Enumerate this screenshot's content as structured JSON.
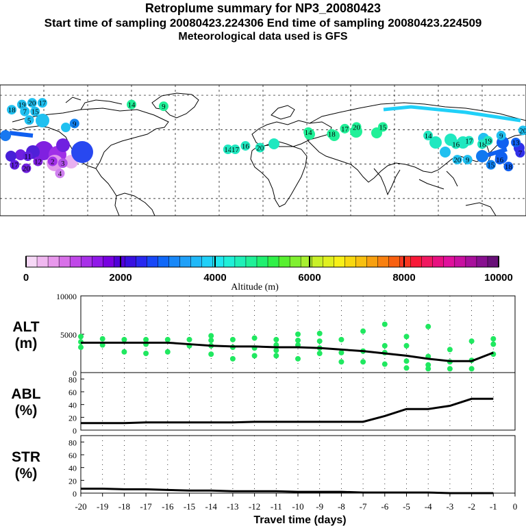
{
  "header": {
    "title": "Retroplume summary for NP3_20080423",
    "sub1": "Start time of sampling 20080423.224306     End time of sampling 20080423.224509",
    "sub2": "Meteorological data used is GFS"
  },
  "colorbar": {
    "label": "Altitude (m)",
    "ticks": [
      "0",
      "2000",
      "4000",
      "6000",
      "8000",
      "10000"
    ],
    "colors": [
      "#f6d8f6",
      "#f0b8f0",
      "#e898ec",
      "#d870e8",
      "#c048e8",
      "#a830e8",
      "#9018e8",
      "#7800e0",
      "#5000d8",
      "#3810e0",
      "#2828f0",
      "#1848f8",
      "#1068f8",
      "#1888f8",
      "#20a0f8",
      "#20b8f8",
      "#20d0f8",
      "#20e8f0",
      "#20f0d8",
      "#20f0b8",
      "#20f098",
      "#20f070",
      "#30f048",
      "#58f030",
      "#80f030",
      "#a8f030",
      "#c8f028",
      "#e0f020",
      "#f8f018",
      "#f8d810",
      "#f8c010",
      "#f8a010",
      "#f88010",
      "#f86010",
      "#f83820",
      "#f81838",
      "#f01860",
      "#e81080",
      "#e0109c",
      "#c810a0",
      "#a8109c",
      "#881090",
      "#681078"
    ]
  },
  "map": {
    "labels": [
      {
        "t": "20",
        "lon": -158,
        "lat": 64,
        "c": "#20c0f0"
      },
      {
        "t": "19",
        "lon": -165,
        "lat": 63,
        "c": "#20c0f0"
      },
      {
        "t": "18",
        "lon": -172,
        "lat": 60,
        "c": "#20c0f0"
      },
      {
        "t": "17",
        "lon": -151,
        "lat": 64,
        "c": "#20c0f0"
      },
      {
        "t": "7",
        "lon": -163,
        "lat": 59,
        "c": "#20c0f0"
      },
      {
        "t": "15",
        "lon": -156,
        "lat": 59,
        "c": "#20c0f0"
      },
      {
        "t": "5",
        "lon": -160,
        "lat": 54,
        "c": "#20c0f0"
      },
      {
        "t": "9",
        "lon": -129,
        "lat": 52,
        "c": "#1080f0"
      },
      {
        "t": "11",
        "lon": -161,
        "lat": 33,
        "c": "#6020e0"
      },
      {
        "t": "12",
        "lon": -154,
        "lat": 30,
        "c": "#8020e0"
      },
      {
        "t": "2",
        "lon": -144,
        "lat": 30,
        "c": "#a030e8"
      },
      {
        "t": "3",
        "lon": -137,
        "lat": 29,
        "c": "#b050e8"
      },
      {
        "t": "4",
        "lon": -139,
        "lat": 23,
        "c": "#d080f0"
      },
      {
        "t": "17",
        "lon": -170,
        "lat": 28,
        "c": "#6020e0"
      },
      {
        "t": "20",
        "lon": -162,
        "lat": 26,
        "c": "#7020e0"
      },
      {
        "t": "14",
        "lon": -90,
        "lat": 63,
        "c": "#20f098"
      },
      {
        "t": "9",
        "lon": -68,
        "lat": 62,
        "c": "#20f098"
      },
      {
        "t": "14",
        "lon": -24,
        "lat": 37,
        "c": "#20e8c0"
      },
      {
        "t": "17",
        "lon": -19,
        "lat": 37,
        "c": "#20e8c0"
      },
      {
        "t": "16",
        "lon": -12,
        "lat": 39,
        "c": "#20e8c0"
      },
      {
        "t": "20",
        "lon": -2,
        "lat": 38,
        "c": "#20e8c0"
      },
      {
        "t": "14",
        "lon": 31,
        "lat": 47,
        "c": "#20f098"
      },
      {
        "t": "18",
        "lon": 47,
        "lat": 46,
        "c": "#20f098"
      },
      {
        "t": "17",
        "lon": 56,
        "lat": 49,
        "c": "#20f098"
      },
      {
        "t": "20",
        "lon": 64,
        "lat": 50,
        "c": "#20f098"
      },
      {
        "t": "15",
        "lon": 82,
        "lat": 50,
        "c": "#20f098"
      },
      {
        "t": "14",
        "lon": 113,
        "lat": 45,
        "c": "#20e8c0"
      },
      {
        "t": "16",
        "lon": 132,
        "lat": 40,
        "c": "#20e8c0"
      },
      {
        "t": "17",
        "lon": 141,
        "lat": 42,
        "c": "#20e8c0"
      },
      {
        "t": "18",
        "lon": 150,
        "lat": 40,
        "c": "#20e8c0"
      },
      {
        "t": "19",
        "lon": 154,
        "lat": 42,
        "c": "#20e8c0"
      },
      {
        "t": "9",
        "lon": 163,
        "lat": 45,
        "c": "#20c0f0"
      },
      {
        "t": "20",
        "lon": 133,
        "lat": 31,
        "c": "#20c0f0"
      },
      {
        "t": "9",
        "lon": 140,
        "lat": 31,
        "c": "#20c0f0"
      },
      {
        "t": "15",
        "lon": 156,
        "lat": 28,
        "c": "#1080f0"
      },
      {
        "t": "18",
        "lon": 168,
        "lat": 27,
        "c": "#1060f0"
      },
      {
        "t": "16",
        "lon": 162,
        "lat": 31,
        "c": "#1060f0"
      },
      {
        "t": "13",
        "lon": 173,
        "lat": 41,
        "c": "#1060f0"
      },
      {
        "t": "20",
        "lon": 178,
        "lat": 48,
        "c": "#20c0f0"
      },
      {
        "t": "7",
        "lon": 176,
        "lat": 35,
        "c": "#3030e8"
      }
    ]
  },
  "chart_data": [
    {
      "type": "scatter",
      "name": "ALT",
      "ylabel": "ALT\n(m)",
      "ylim": [
        0,
        10000
      ],
      "yticks": [
        "0",
        "5000",
        "10000"
      ],
      "xlim": [
        -20,
        0
      ],
      "median_line": {
        "x": [
          -20,
          -19,
          -18,
          -17,
          -16,
          -15,
          -14,
          -13,
          -12,
          -11,
          -10,
          -9,
          -8,
          -7,
          -6,
          -5,
          -4,
          -3,
          -2,
          -1
        ],
        "y": [
          3900,
          3900,
          3900,
          3900,
          3900,
          3700,
          3500,
          3400,
          3400,
          3300,
          3300,
          3200,
          3000,
          2800,
          2500,
          2200,
          1800,
          1500,
          1500,
          2600
        ]
      },
      "scatter": [
        {
          "x": -20,
          "y": 4000
        },
        {
          "x": -20,
          "y": 4700
        },
        {
          "x": -20,
          "y": 3300
        },
        {
          "x": -19,
          "y": 4400
        },
        {
          "x": -19,
          "y": 3600
        },
        {
          "x": -18,
          "y": 4300
        },
        {
          "x": -18,
          "y": 2700
        },
        {
          "x": -17,
          "y": 4300
        },
        {
          "x": -17,
          "y": 3700
        },
        {
          "x": -17,
          "y": 2500
        },
        {
          "x": -16,
          "y": 4300
        },
        {
          "x": -16,
          "y": 2700
        },
        {
          "x": -15,
          "y": 3500
        },
        {
          "x": -15,
          "y": 4300
        },
        {
          "x": -14,
          "y": 4200
        },
        {
          "x": -14,
          "y": 3500
        },
        {
          "x": -14,
          "y": 4800
        },
        {
          "x": -14,
          "y": 2400
        },
        {
          "x": -13,
          "y": 4300
        },
        {
          "x": -13,
          "y": 3300
        },
        {
          "x": -13,
          "y": 1800
        },
        {
          "x": -12,
          "y": 4500
        },
        {
          "x": -12,
          "y": 3200
        },
        {
          "x": -12,
          "y": 2200
        },
        {
          "x": -11,
          "y": 4300
        },
        {
          "x": -11,
          "y": 3600
        },
        {
          "x": -11,
          "y": 2200
        },
        {
          "x": -11,
          "y": 2900
        },
        {
          "x": -10,
          "y": 4200
        },
        {
          "x": -10,
          "y": 3600
        },
        {
          "x": -10,
          "y": 1800
        },
        {
          "x": -10,
          "y": 5000
        },
        {
          "x": -9,
          "y": 5100
        },
        {
          "x": -9,
          "y": 4100
        },
        {
          "x": -9,
          "y": 3200
        },
        {
          "x": -9,
          "y": 2500
        },
        {
          "x": -8,
          "y": 4300
        },
        {
          "x": -8,
          "y": 2600
        },
        {
          "x": -8,
          "y": 1400
        },
        {
          "x": -7,
          "y": 5400
        },
        {
          "x": -7,
          "y": 2800
        },
        {
          "x": -7,
          "y": 1400
        },
        {
          "x": -6,
          "y": 6300
        },
        {
          "x": -6,
          "y": 3500
        },
        {
          "x": -6,
          "y": 2600
        },
        {
          "x": -6,
          "y": 1100
        },
        {
          "x": -5,
          "y": 4700
        },
        {
          "x": -5,
          "y": 3500
        },
        {
          "x": -5,
          "y": 1500
        },
        {
          "x": -5,
          "y": 600
        },
        {
          "x": -4,
          "y": 6000
        },
        {
          "x": -4,
          "y": 2100
        },
        {
          "x": -4,
          "y": 1000
        },
        {
          "x": -4,
          "y": 500
        },
        {
          "x": -3,
          "y": 3000
        },
        {
          "x": -3,
          "y": 1400
        },
        {
          "x": -3,
          "y": 500
        },
        {
          "x": -2,
          "y": 4100
        },
        {
          "x": -2,
          "y": 1600
        },
        {
          "x": -2,
          "y": 500
        },
        {
          "x": -1,
          "y": 4400
        },
        {
          "x": -1,
          "y": 3700
        },
        {
          "x": -1,
          "y": 2400
        }
      ]
    },
    {
      "type": "line",
      "name": "ABL",
      "ylabel": "ABL\n(%)",
      "ylim": [
        0,
        90
      ],
      "yticks": [
        "0",
        "20",
        "40",
        "60",
        "80"
      ],
      "xlim": [
        -20,
        0
      ],
      "x": [
        -20,
        -19,
        -18,
        -17,
        -16,
        -15,
        -14,
        -13,
        -12,
        -11,
        -10,
        -9,
        -8,
        -7,
        -6,
        -5,
        -4,
        -3,
        -2,
        -1
      ],
      "y": [
        11,
        11,
        11,
        12,
        12,
        12,
        12,
        12,
        13,
        13,
        13,
        13,
        13,
        13,
        22,
        33,
        33,
        38,
        49,
        49
      ]
    },
    {
      "type": "line",
      "name": "STR",
      "ylabel": "STR\n(%)",
      "ylim": [
        0,
        90
      ],
      "yticks": [
        "0",
        "20",
        "40",
        "60",
        "80"
      ],
      "xlim": [
        -20,
        0
      ],
      "x": [
        -20,
        -19,
        -18,
        -17,
        -16,
        -15,
        -14,
        -13,
        -12,
        -11,
        -10,
        -9,
        -8,
        -7,
        -6,
        -5,
        -4,
        -3,
        -2,
        -1
      ],
      "y": [
        7,
        7,
        6,
        6,
        5,
        4,
        4,
        3,
        3,
        3,
        2,
        2,
        2,
        1,
        1,
        1,
        1,
        0,
        0,
        0
      ]
    }
  ],
  "xaxis": {
    "ticks": [
      "-20",
      "-19",
      "-18",
      "-17",
      "-16",
      "-15",
      "-14",
      "-13",
      "-12",
      "-11",
      "-10",
      "-9",
      "-8",
      "-7",
      "-6",
      "-5",
      "-4",
      "-3",
      "-2",
      "-1",
      "0"
    ],
    "label": "Travel time (days)"
  },
  "colors": {
    "median": "#000000",
    "scatter": "#20e860",
    "land": "#000000",
    "grid": "#000000"
  }
}
